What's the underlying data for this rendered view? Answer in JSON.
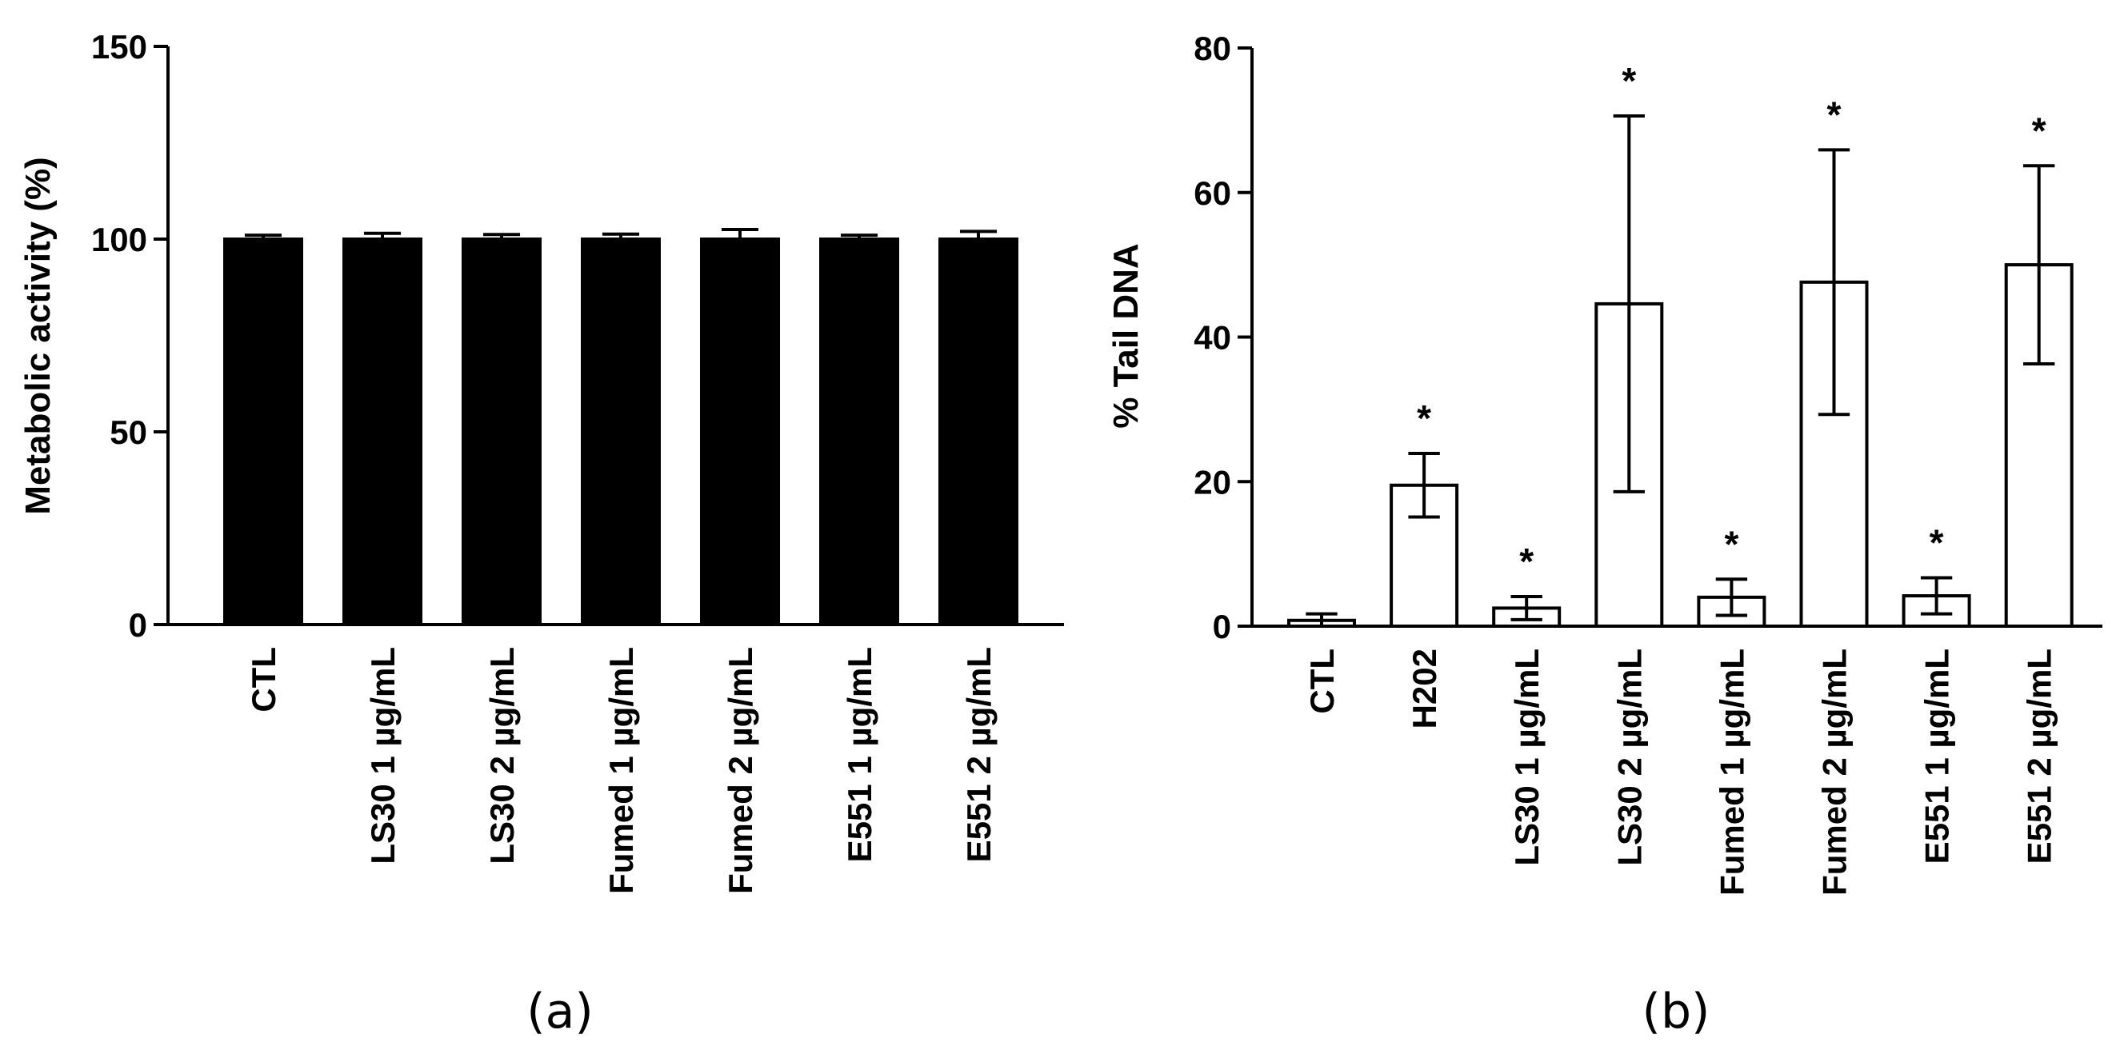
{
  "chart_data": [
    {
      "type": "bar",
      "panel_label": "(a)",
      "ylabel": "Metabolic activity (%)",
      "ylim": [
        0,
        150
      ],
      "yticks": [
        0,
        50,
        100,
        150
      ],
      "bar_style": "filled-black",
      "categories": [
        "CTL",
        "LS30 1 µg/mL",
        "LS30 2 µg/mL",
        "Fumed 1 µg/mL",
        "Fumed 2 µg/mL",
        "E551 1 µg/mL",
        "E551 2 µg/mL"
      ],
      "values": [
        100,
        100,
        100,
        100,
        100,
        100,
        100
      ],
      "errors": [
        1,
        1.5,
        1.2,
        1.3,
        2.5,
        1,
        2
      ],
      "significance": [
        "",
        "",
        "",
        "",
        "",
        "",
        ""
      ]
    },
    {
      "type": "bar",
      "panel_label": "(b)",
      "ylabel": "% Tail  DNA",
      "ylim": [
        0,
        80
      ],
      "yticks": [
        0,
        20,
        40,
        60,
        80
      ],
      "bar_style": "open-white",
      "categories": [
        "CTL",
        "H202",
        "LS30 1 µg/mL",
        "LS30 2 µg/mL",
        "Fumed 1 µg/mL",
        "Fumed 2 µg/mL",
        "E551 1 µg/mL",
        "E551 2 µg/mL"
      ],
      "values": [
        0.8,
        19.5,
        2.5,
        44.6,
        4.0,
        47.6,
        4.2,
        50.0
      ],
      "errors": [
        0.9,
        4.4,
        1.6,
        26,
        2.5,
        18.3,
        2.5,
        13.7
      ],
      "significance": [
        "",
        "*",
        "*",
        "*",
        "*",
        "*",
        "*",
        "*"
      ]
    }
  ]
}
